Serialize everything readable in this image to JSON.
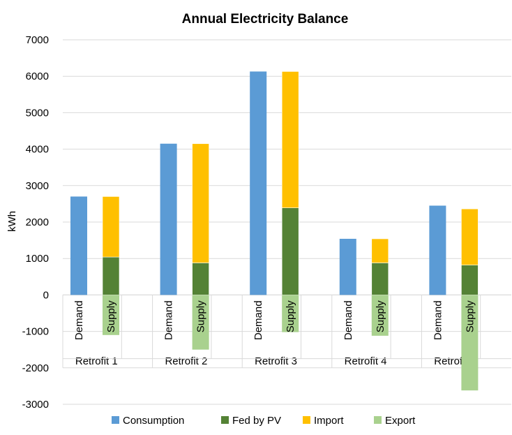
{
  "chart_data": {
    "type": "bar",
    "title": "Annual Electricity Balance",
    "ylabel": "kWh",
    "xlabel": "",
    "ylim": [
      -3000,
      7000
    ],
    "yticks": [
      7000,
      6000,
      5000,
      4000,
      3000,
      2000,
      1000,
      0,
      -1000,
      -2000,
      -3000
    ],
    "grid": true,
    "legend_position": "bottom",
    "groups": [
      "Retrofit 1",
      "Retrofit 2",
      "Retrofit 3",
      "Retrofit 4",
      "Retrofit 5"
    ],
    "bar_labels": [
      "Demand",
      "Supply"
    ],
    "series": [
      {
        "name": "Consumption",
        "color": "#5B9BD5",
        "bar": "Demand",
        "values": [
          2700,
          4150,
          6130,
          1540,
          2450
        ]
      },
      {
        "name": "Fed by PV",
        "color": "#548235",
        "bar": "Supply",
        "values": [
          1040,
          880,
          2390,
          880,
          820
        ]
      },
      {
        "name": "Import",
        "color": "#FFC000",
        "bar": "Supply",
        "values": [
          1660,
          3270,
          3740,
          660,
          1540
        ]
      },
      {
        "name": "Export",
        "color": "#A9D18E",
        "bar": "Supply",
        "values": [
          -1100,
          -1500,
          -1020,
          -1120,
          -2620
        ]
      }
    ]
  }
}
